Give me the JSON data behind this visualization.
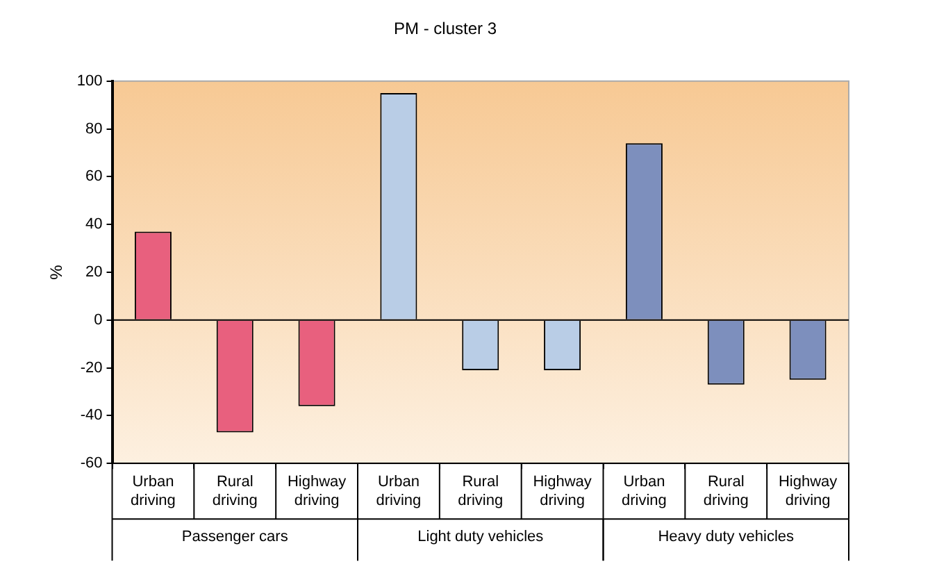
{
  "chart_data": {
    "type": "bar",
    "title": "PM - cluster 3",
    "ylabel": "%",
    "categories": [
      "Urban driving",
      "Rural driving",
      "Highway driving",
      "Urban driving",
      "Rural driving",
      "Highway driving",
      "Urban driving",
      "Rural driving",
      "Highway driving"
    ],
    "values": [
      37,
      -47,
      -36,
      95,
      -21,
      -21,
      74,
      -27,
      -25
    ],
    "colors": [
      "#e8607e",
      "#e8607e",
      "#e8607e",
      "#b9cde6",
      "#b9cde6",
      "#b9cde6",
      "#7d8fbd",
      "#7d8fbd",
      "#7d8fbd"
    ],
    "annotations": [
      "Passenger cars",
      "Light duty vehicles",
      "Heavy duty vehicles"
    ],
    "ylim": [
      -60,
      100
    ],
    "yticks": [
      -60,
      -40,
      -20,
      0,
      20,
      40,
      60,
      80,
      100
    ],
    "ref_lines": [
      {
        "axis": "y",
        "value": 0,
        "label": null
      }
    ],
    "grid": false,
    "legend": false
  }
}
